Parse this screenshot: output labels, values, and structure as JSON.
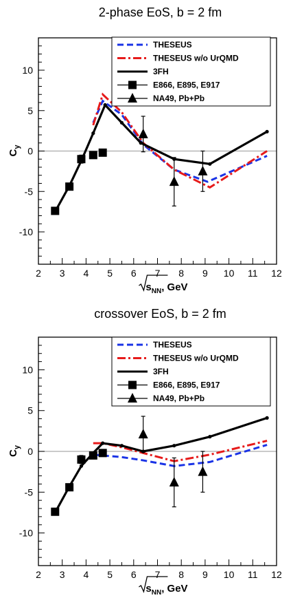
{
  "chart_data": [
    {
      "type": "line",
      "title": "2-phase EoS, b = 2 fm",
      "ylabel": "C_y",
      "xlabel_text": "s",
      "xlabel_sub": "NN",
      "xlabel_unit": ", GeV",
      "xlim": [
        2,
        12
      ],
      "ylim": [
        -14,
        14
      ],
      "xticks": [
        2,
        3,
        4,
        5,
        6,
        7,
        8,
        9,
        10,
        11,
        12
      ],
      "yticks": [
        -10,
        -5,
        0,
        5,
        10
      ],
      "series": [
        {
          "name": "THESEUS",
          "style": "dash",
          "color": "#1a33e6",
          "x": [
            4.3,
            4.7,
            5.5,
            6.4,
            7.7,
            9.1,
            11.6
          ],
          "y": [
            3.5,
            6.2,
            4.5,
            0.8,
            -2.3,
            -3.8,
            -0.6
          ]
        },
        {
          "name": "THESEUS w/o UrQMD",
          "style": "dashdot",
          "color": "#e61a1a",
          "x": [
            4.3,
            4.7,
            5.5,
            6.4,
            7.7,
            9.2,
            11.6
          ],
          "y": [
            3.2,
            7.0,
            4.8,
            1.0,
            -2.3,
            -4.5,
            0.0
          ]
        },
        {
          "name": "3FH",
          "style": "solid",
          "color": "#000000",
          "x": [
            2.7,
            3.3,
            3.8,
            4.3,
            4.8,
            5.5,
            6.3,
            7.7,
            9.2,
            11.6
          ],
          "y": [
            -7.5,
            -4.3,
            -1.2,
            2.2,
            5.7,
            3.5,
            1.0,
            -1.0,
            -1.6,
            2.4
          ]
        },
        {
          "name": "E866, E895, E917",
          "style": "marker-square",
          "color": "#000000",
          "x": [
            2.7,
            3.3,
            3.8,
            4.3,
            4.7
          ],
          "y": [
            -7.4,
            -4.4,
            -1.0,
            -0.5,
            -0.2
          ],
          "yerr": [
            0.3,
            0.3,
            0.5,
            0.4,
            0.4
          ]
        },
        {
          "name": "NA49, Pb+Pb",
          "style": "marker-triangle",
          "color": "#000000",
          "x": [
            6.4,
            7.7,
            8.9
          ],
          "y": [
            2.1,
            -3.8,
            -2.5
          ],
          "yerr": [
            2.2,
            3.0,
            2.5
          ]
        }
      ]
    },
    {
      "type": "line",
      "title": "crossover EoS, b = 2 fm",
      "ylabel": "C_y",
      "xlabel_text": "s",
      "xlabel_sub": "NN",
      "xlabel_unit": ", GeV",
      "xlim": [
        2,
        12
      ],
      "ylim": [
        -14,
        14
      ],
      "xticks": [
        2,
        3,
        4,
        5,
        6,
        7,
        8,
        9,
        10,
        11,
        12
      ],
      "yticks": [
        -10,
        -5,
        0,
        5,
        10
      ],
      "series": [
        {
          "name": "THESEUS",
          "style": "dash",
          "color": "#1a33e6",
          "x": [
            4.3,
            4.7,
            5.5,
            6.4,
            7.7,
            9.2,
            11.6
          ],
          "y": [
            -0.4,
            -0.5,
            -0.7,
            -1.1,
            -1.8,
            -1.3,
            0.8
          ]
        },
        {
          "name": "THESEUS w/o UrQMD",
          "style": "dashdot",
          "color": "#e61a1a",
          "x": [
            4.3,
            4.7,
            5.5,
            6.4,
            7.7,
            9.2,
            11.6
          ],
          "y": [
            1.0,
            1.0,
            0.5,
            -0.2,
            -1.2,
            -0.4,
            1.3
          ]
        },
        {
          "name": "3FH",
          "style": "solid",
          "color": "#000000",
          "x": [
            2.7,
            3.3,
            3.8,
            4.3,
            4.7,
            5.5,
            6.4,
            7.7,
            9.2,
            11.6
          ],
          "y": [
            -7.5,
            -4.3,
            -1.8,
            -0.2,
            1.0,
            0.7,
            0.0,
            0.7,
            1.8,
            4.1
          ]
        },
        {
          "name": "E866, E895, E917",
          "style": "marker-square",
          "color": "#000000",
          "x": [
            2.7,
            3.3,
            3.8,
            4.3,
            4.7
          ],
          "y": [
            -7.4,
            -4.4,
            -1.0,
            -0.5,
            -0.2
          ],
          "yerr": [
            0.3,
            0.3,
            0.5,
            0.4,
            0.4
          ]
        },
        {
          "name": "NA49, Pb+Pb",
          "style": "marker-triangle",
          "color": "#000000",
          "x": [
            6.4,
            7.7,
            8.9
          ],
          "y": [
            2.1,
            -3.8,
            -2.5
          ],
          "yerr": [
            2.2,
            3.0,
            2.5
          ]
        }
      ]
    }
  ]
}
